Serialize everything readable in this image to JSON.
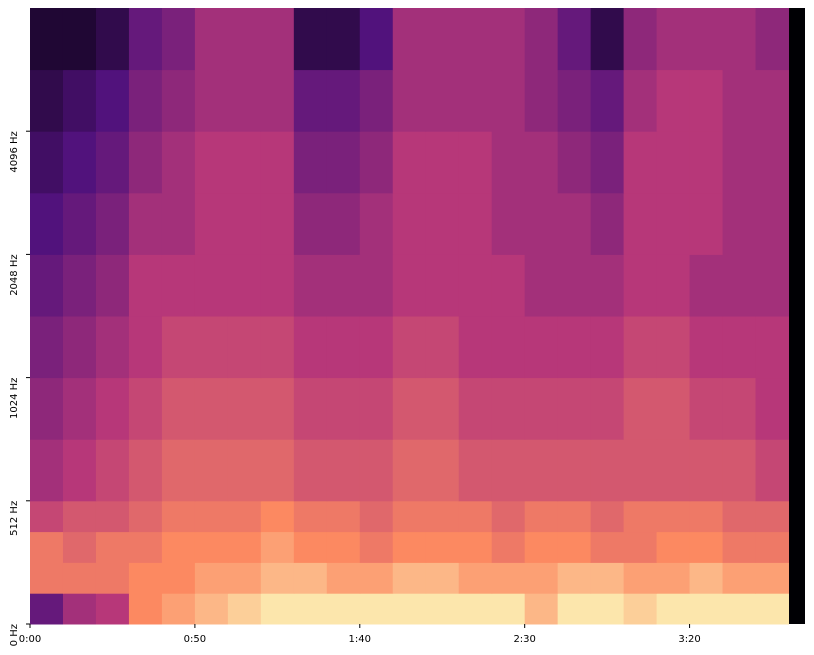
{
  "chart_data": {
    "type": "spectrogram",
    "colormap": "magma",
    "xlim": [
      0,
      235
    ],
    "xticks": [
      {
        "value": 0,
        "label": "0:00"
      },
      {
        "value": 50,
        "label": "0:50"
      },
      {
        "value": 100,
        "label": "1:40"
      },
      {
        "value": 150,
        "label": "2:30"
      },
      {
        "value": 200,
        "label": "3:20"
      }
    ],
    "ylim": [
      0,
      8192
    ],
    "yscale": "symlog",
    "linthresh": 512,
    "yticks": [
      {
        "value": 0,
        "label": "0 Hz"
      },
      {
        "value": 512,
        "label": "512 Hz"
      },
      {
        "value": 1024,
        "label": "1024 Hz"
      },
      {
        "value": 2048,
        "label": "2048 Hz"
      },
      {
        "value": 4096,
        "label": "4096 Hz"
      }
    ],
    "x_edges": [
      0,
      10,
      20,
      30,
      40,
      50,
      60,
      70,
      80,
      90,
      100,
      110,
      120,
      130,
      140,
      150,
      160,
      170,
      180,
      190,
      200,
      210,
      220,
      230
    ],
    "y_edges": [
      0,
      128,
      256,
      384,
      512,
      724,
      1024,
      1448,
      2048,
      2896,
      4096,
      5793,
      8192
    ],
    "values": [
      [
        0.3,
        0.45,
        0.5,
        0.75,
        0.8,
        0.85,
        0.9,
        0.95,
        0.95,
        0.95,
        0.95,
        0.95,
        0.95,
        0.95,
        0.95,
        0.85,
        0.95,
        0.95,
        0.9,
        0.95,
        0.95,
        0.95,
        0.95
      ],
      [
        0.7,
        0.7,
        0.7,
        0.75,
        0.75,
        0.8,
        0.8,
        0.85,
        0.85,
        0.8,
        0.8,
        0.85,
        0.85,
        0.8,
        0.8,
        0.8,
        0.85,
        0.85,
        0.8,
        0.8,
        0.85,
        0.8,
        0.8
      ],
      [
        0.7,
        0.65,
        0.7,
        0.7,
        0.75,
        0.75,
        0.75,
        0.8,
        0.75,
        0.75,
        0.7,
        0.75,
        0.75,
        0.75,
        0.7,
        0.75,
        0.75,
        0.7,
        0.7,
        0.75,
        0.75,
        0.7,
        0.7
      ],
      [
        0.55,
        0.6,
        0.6,
        0.65,
        0.7,
        0.7,
        0.7,
        0.75,
        0.7,
        0.7,
        0.65,
        0.7,
        0.7,
        0.7,
        0.65,
        0.7,
        0.7,
        0.65,
        0.7,
        0.7,
        0.7,
        0.65,
        0.65
      ],
      [
        0.45,
        0.5,
        0.55,
        0.6,
        0.65,
        0.65,
        0.65,
        0.65,
        0.6,
        0.6,
        0.6,
        0.65,
        0.65,
        0.6,
        0.6,
        0.6,
        0.6,
        0.6,
        0.6,
        0.6,
        0.6,
        0.6,
        0.55
      ],
      [
        0.4,
        0.45,
        0.5,
        0.55,
        0.6,
        0.6,
        0.6,
        0.6,
        0.55,
        0.55,
        0.55,
        0.6,
        0.6,
        0.55,
        0.55,
        0.55,
        0.55,
        0.55,
        0.6,
        0.6,
        0.55,
        0.55,
        0.5
      ],
      [
        0.35,
        0.4,
        0.45,
        0.5,
        0.55,
        0.55,
        0.55,
        0.55,
        0.5,
        0.5,
        0.5,
        0.55,
        0.55,
        0.5,
        0.5,
        0.5,
        0.5,
        0.5,
        0.55,
        0.55,
        0.5,
        0.5,
        0.5
      ],
      [
        0.3,
        0.35,
        0.4,
        0.5,
        0.5,
        0.5,
        0.5,
        0.5,
        0.45,
        0.45,
        0.45,
        0.5,
        0.5,
        0.5,
        0.5,
        0.45,
        0.45,
        0.45,
        0.5,
        0.5,
        0.45,
        0.45,
        0.45
      ],
      [
        0.25,
        0.3,
        0.35,
        0.45,
        0.45,
        0.5,
        0.5,
        0.5,
        0.4,
        0.4,
        0.45,
        0.5,
        0.5,
        0.5,
        0.45,
        0.45,
        0.45,
        0.4,
        0.5,
        0.5,
        0.5,
        0.45,
        0.45
      ],
      [
        0.2,
        0.25,
        0.3,
        0.4,
        0.45,
        0.5,
        0.5,
        0.5,
        0.35,
        0.35,
        0.4,
        0.5,
        0.5,
        0.5,
        0.45,
        0.45,
        0.4,
        0.35,
        0.5,
        0.5,
        0.5,
        0.45,
        0.45
      ],
      [
        0.15,
        0.2,
        0.25,
        0.35,
        0.4,
        0.45,
        0.45,
        0.45,
        0.3,
        0.3,
        0.35,
        0.45,
        0.45,
        0.45,
        0.45,
        0.4,
        0.35,
        0.3,
        0.45,
        0.5,
        0.5,
        0.45,
        0.45
      ],
      [
        0.1,
        0.1,
        0.15,
        0.3,
        0.35,
        0.45,
        0.45,
        0.45,
        0.15,
        0.15,
        0.25,
        0.45,
        0.45,
        0.45,
        0.45,
        0.4,
        0.3,
        0.15,
        0.4,
        0.45,
        0.45,
        0.45,
        0.4
      ]
    ]
  }
}
